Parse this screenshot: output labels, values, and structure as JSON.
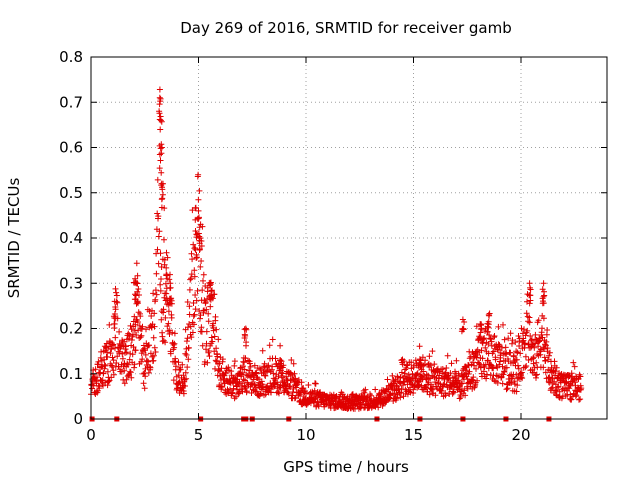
{
  "chart_data": {
    "type": "scatter",
    "title": "Day 269 of 2016, SRMTID for receiver gamb",
    "xlabel": "GPS time / hours",
    "ylabel": "SRMTID / TECUs",
    "xlim": [
      0,
      24
    ],
    "ylim": [
      0,
      0.8
    ],
    "xticks": [
      0,
      5,
      10,
      15,
      20
    ],
    "xtick_labels": [
      "0",
      "5",
      "10",
      "15",
      "20"
    ],
    "yticks": [
      0,
      0.1,
      0.2,
      0.3,
      0.4,
      0.5,
      0.6,
      0.7,
      0.8
    ],
    "ytick_labels": [
      "0",
      "0.1",
      "0.2",
      "0.3",
      "0.4",
      "0.5",
      "0.6",
      "0.7",
      "0.8"
    ],
    "grid": true,
    "marker": "+",
    "color": "#e00000",
    "series": [
      {
        "name": "SRMTID",
        "profile": [
          [
            0.0,
            0.07
          ],
          [
            0.5,
            0.11
          ],
          [
            1.0,
            0.13
          ],
          [
            1.2,
            0.21
          ],
          [
            1.5,
            0.12
          ],
          [
            2.0,
            0.16
          ],
          [
            2.1,
            0.26
          ],
          [
            2.5,
            0.11
          ],
          [
            3.0,
            0.2
          ],
          [
            3.1,
            0.42
          ],
          [
            3.2,
            0.55
          ],
          [
            3.3,
            0.25
          ],
          [
            3.6,
            0.27
          ],
          [
            3.9,
            0.11
          ],
          [
            4.3,
            0.07
          ],
          [
            4.8,
            0.33
          ],
          [
            5.0,
            0.4
          ],
          [
            5.3,
            0.18
          ],
          [
            5.6,
            0.24
          ],
          [
            6.0,
            0.1
          ],
          [
            6.8,
            0.07
          ],
          [
            7.2,
            0.1
          ],
          [
            7.8,
            0.08
          ],
          [
            8.5,
            0.1
          ],
          [
            9.2,
            0.08
          ],
          [
            9.8,
            0.05
          ],
          [
            11.0,
            0.04
          ],
          [
            12.0,
            0.035
          ],
          [
            13.3,
            0.04
          ],
          [
            14.0,
            0.06
          ],
          [
            14.8,
            0.09
          ],
          [
            15.4,
            0.1
          ],
          [
            15.7,
            0.09
          ],
          [
            16.5,
            0.08
          ],
          [
            17.2,
            0.07
          ],
          [
            17.9,
            0.12
          ],
          [
            18.4,
            0.15
          ],
          [
            18.8,
            0.13
          ],
          [
            19.3,
            0.11
          ],
          [
            19.8,
            0.1
          ],
          [
            20.3,
            0.2
          ],
          [
            20.6,
            0.12
          ],
          [
            21.0,
            0.2
          ],
          [
            21.4,
            0.09
          ],
          [
            22.0,
            0.07
          ],
          [
            22.8,
            0.07
          ]
        ],
        "peaks": [
          [
            3.2,
            0.71
          ],
          [
            3.25,
            0.66
          ],
          [
            3.3,
            0.6
          ],
          [
            3.35,
            0.52
          ],
          [
            3.5,
            0.32
          ],
          [
            3.7,
            0.29
          ],
          [
            4.85,
            0.44
          ],
          [
            5.0,
            0.46
          ],
          [
            5.1,
            0.43
          ],
          [
            5.55,
            0.3
          ],
          [
            1.1,
            0.26
          ],
          [
            2.05,
            0.31
          ],
          [
            2.15,
            0.3
          ],
          [
            20.4,
            0.3
          ],
          [
            21.05,
            0.3
          ],
          [
            18.5,
            0.23
          ],
          [
            18.1,
            0.21
          ],
          [
            17.3,
            0.22
          ],
          [
            7.2,
            0.2
          ],
          [
            8.8,
            0.13
          ],
          [
            15.3,
            0.13
          ]
        ]
      }
    ],
    "point_count": 1800,
    "baseline_markers_x": [
      0.05,
      1.2,
      5.1,
      7.1,
      7.2,
      7.5,
      9.2,
      13.3,
      15.3,
      17.3,
      19.3,
      21.3
    ]
  }
}
